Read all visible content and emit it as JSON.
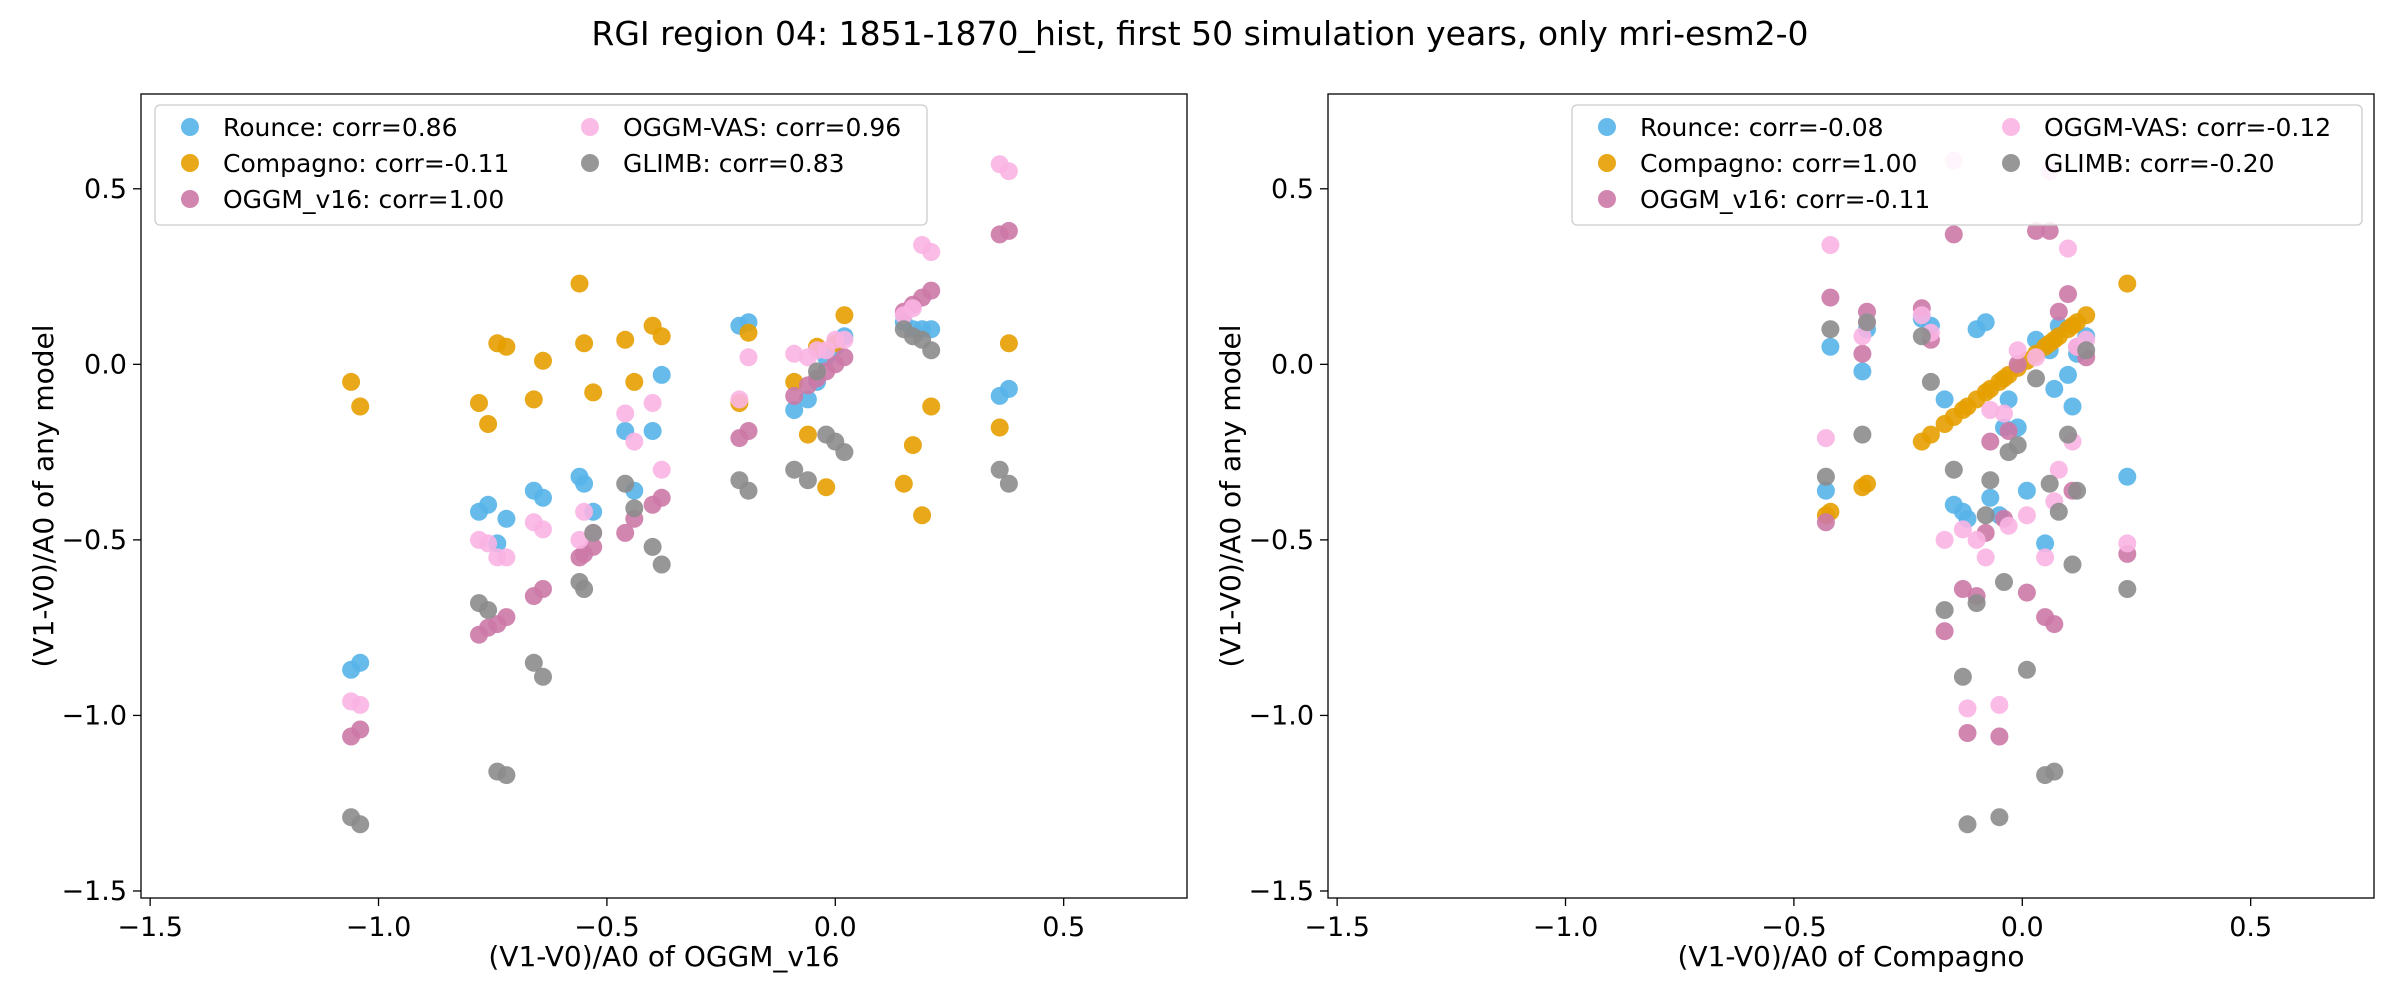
{
  "figure": {
    "title": "RGI region 04: 1851-1870_hist, first 50 simulation years, only mri-esm2-0"
  },
  "colors": {
    "Rounce": "#56B4E9",
    "Compagno": "#E69F00",
    "OGGM_v16": "#CC79A7",
    "OGGM-VAS": "#F9B4E3",
    "GLIMB": "#8C8C8C"
  },
  "chart_data": [
    {
      "type": "scatter",
      "title": "",
      "xlabel": "(V1-V0)/A0 of OGGM_v16",
      "ylabel": "(V1-V0)/A0 of any model",
      "xlim": [
        -1.52,
        0.77
      ],
      "ylim": [
        -1.52,
        0.77
      ],
      "xticks": [
        -1.5,
        -1.0,
        -0.5,
        0.0,
        0.5
      ],
      "xtick_labels": [
        "−1.5",
        "−1.0",
        "−0.5",
        "0.0",
        "0.5"
      ],
      "yticks": [
        -1.5,
        -1.0,
        -0.5,
        0.0,
        0.5
      ],
      "ytick_labels": [
        "−1.5",
        "−1.0",
        "−0.5",
        "0.0",
        "0.5"
      ],
      "grid": false,
      "legend": {
        "placement": "top-left",
        "columns": 2
      },
      "x": [
        -1.06,
        -1.04,
        -0.78,
        -0.76,
        -0.74,
        -0.72,
        -0.66,
        -0.64,
        -0.56,
        -0.55,
        -0.53,
        -0.46,
        -0.44,
        -0.4,
        -0.38,
        -0.21,
        -0.19,
        -0.09,
        -0.06,
        -0.04,
        -0.02,
        0.0,
        0.02,
        0.15,
        0.17,
        0.19,
        0.21,
        0.36,
        0.38
      ],
      "series": [
        {
          "name": "Rounce: corr=0.86",
          "color": "#56B4E9",
          "y": [
            -0.87,
            -0.85,
            -0.42,
            -0.4,
            -0.51,
            -0.44,
            -0.36,
            -0.38,
            -0.32,
            -0.34,
            -0.42,
            -0.19,
            -0.36,
            -0.19,
            -0.03,
            0.11,
            0.12,
            -0.13,
            -0.1,
            -0.05,
            0.02,
            0.05,
            0.08,
            0.12,
            0.1,
            0.1,
            0.1,
            -0.09,
            -0.07
          ]
        },
        {
          "name": "Compagno: corr=-0.11",
          "color": "#E69F00",
          "y": [
            -0.05,
            -0.12,
            -0.11,
            -0.17,
            0.06,
            0.05,
            -0.1,
            0.01,
            0.23,
            0.06,
            -0.08,
            0.07,
            -0.05,
            0.11,
            0.08,
            -0.11,
            0.09,
            -0.05,
            -0.2,
            0.05,
            -0.35,
            0.06,
            0.14,
            -0.34,
            -0.23,
            -0.43,
            -0.12,
            -0.18,
            0.06
          ]
        },
        {
          "name": "OGGM_v16: corr=1.00",
          "color": "#CC79A7",
          "y": [
            -1.06,
            -1.04,
            -0.77,
            -0.75,
            -0.74,
            -0.72,
            -0.66,
            -0.64,
            -0.55,
            -0.54,
            -0.52,
            -0.48,
            -0.44,
            -0.4,
            -0.38,
            -0.21,
            -0.19,
            -0.09,
            -0.06,
            -0.04,
            -0.02,
            0.0,
            0.02,
            0.15,
            0.17,
            0.19,
            0.21,
            0.37,
            0.38
          ]
        },
        {
          "name": "OGGM-VAS: corr=0.96",
          "color": "#F9B4E3",
          "y": [
            -0.96,
            -0.97,
            -0.5,
            -0.51,
            -0.55,
            -0.55,
            -0.45,
            -0.47,
            -0.5,
            -0.42,
            -0.48,
            -0.14,
            -0.22,
            -0.11,
            -0.3,
            -0.1,
            0.02,
            0.03,
            0.02,
            0.04,
            0.04,
            0.07,
            0.07,
            0.14,
            0.16,
            0.34,
            0.32,
            0.57,
            0.55
          ]
        },
        {
          "name": "GLIMB: corr=0.83",
          "color": "#8C8C8C",
          "y": [
            -1.29,
            -1.31,
            -0.68,
            -0.7,
            -1.16,
            -1.17,
            -0.85,
            -0.89,
            -0.62,
            -0.64,
            -0.48,
            -0.34,
            -0.41,
            -0.52,
            -0.57,
            -0.33,
            -0.36,
            -0.3,
            -0.33,
            -0.02,
            -0.2,
            -0.22,
            -0.25,
            0.1,
            0.08,
            0.07,
            0.04,
            -0.3,
            -0.34
          ]
        }
      ]
    },
    {
      "type": "scatter",
      "title": "",
      "xlabel": "(V1-V0)/A0 of Compagno",
      "ylabel": "(V1-V0)/A0 of any model",
      "xlim": [
        -1.52,
        0.77
      ],
      "ylim": [
        -1.52,
        0.77
      ],
      "xticks": [
        -1.5,
        -1.0,
        -0.5,
        0.0,
        0.5
      ],
      "xtick_labels": [
        "−1.5",
        "−1.0",
        "−0.5",
        "0.0",
        "0.5"
      ],
      "yticks": [
        -1.5,
        -1.0,
        -0.5,
        0.0,
        0.5
      ],
      "ytick_labels": [
        "−1.5",
        "−1.0",
        "−0.5",
        "0.0",
        "0.5"
      ],
      "grid": false,
      "legend": {
        "placement": "top-right",
        "columns": 2
      },
      "x": [
        -0.43,
        -0.42,
        -0.35,
        -0.34,
        -0.13,
        -0.12,
        -0.1,
        -0.08,
        -0.07,
        -0.05,
        -0.04,
        -0.03,
        0.05,
        0.06,
        0.07,
        0.08,
        0.1,
        0.11,
        0.12,
        0.14,
        0.23,
        -0.22,
        -0.2,
        -0.17,
        -0.15,
        -0.01,
        0.01,
        0.03
      ],
      "series": [
        {
          "name": "Rounce: corr=-0.08",
          "color": "#56B4E9",
          "y": [
            -0.36,
            0.05,
            -0.02,
            0.1,
            -0.42,
            -0.44,
            0.1,
            0.12,
            -0.38,
            -0.43,
            -0.18,
            -0.1,
            -0.51,
            0.04,
            -0.07,
            0.11,
            -0.03,
            -0.12,
            0.03,
            0.08,
            -0.32,
            0.13,
            0.11,
            -0.1,
            -0.4,
            -0.18,
            -0.36,
            0.07
          ]
        },
        {
          "name": "Compagno: corr=1.00",
          "color": "#E69F00",
          "y": [
            -0.43,
            -0.42,
            -0.35,
            -0.34,
            -0.13,
            -0.12,
            -0.1,
            -0.08,
            -0.07,
            -0.05,
            -0.04,
            -0.03,
            0.05,
            0.06,
            0.07,
            0.08,
            0.1,
            0.11,
            0.12,
            0.14,
            0.23,
            -0.22,
            -0.2,
            -0.17,
            -0.15,
            -0.01,
            0.01,
            0.03
          ]
        },
        {
          "name": "OGGM_v16: corr=-0.11",
          "color": "#CC79A7",
          "y": [
            -0.45,
            0.19,
            0.03,
            0.15,
            -0.64,
            -1.05,
            -0.66,
            -0.48,
            -0.22,
            -1.06,
            -0.44,
            -0.19,
            -0.72,
            0.38,
            -0.74,
            0.15,
            0.2,
            -0.36,
            0.05,
            0.02,
            -0.54,
            0.16,
            0.07,
            -0.76,
            0.37,
            0.0,
            -0.65,
            0.38
          ]
        },
        {
          "name": "OGGM-VAS: corr=-0.12",
          "color": "#F9B4E3",
          "y": [
            -0.21,
            0.34,
            0.08,
            0.12,
            -0.47,
            -0.98,
            -0.5,
            -0.55,
            -0.13,
            -0.97,
            -0.14,
            -0.46,
            -0.55,
            0.55,
            -0.39,
            -0.3,
            0.33,
            -0.22,
            0.05,
            0.07,
            -0.51,
            0.14,
            0.09,
            -0.5,
            0.58,
            0.04,
            -0.43,
            0.02
          ]
        },
        {
          "name": "GLIMB: corr=-0.20",
          "color": "#8C8C8C",
          "y": [
            -0.32,
            0.1,
            -0.2,
            0.12,
            -0.89,
            -1.31,
            -0.68,
            -0.43,
            -0.33,
            -1.29,
            -0.62,
            -0.25,
            -1.17,
            -0.34,
            -1.16,
            -0.42,
            -0.2,
            -0.57,
            -0.36,
            0.04,
            -0.64,
            0.08,
            -0.05,
            -0.7,
            -0.3,
            -0.23,
            -0.87,
            -0.04
          ]
        }
      ]
    }
  ]
}
